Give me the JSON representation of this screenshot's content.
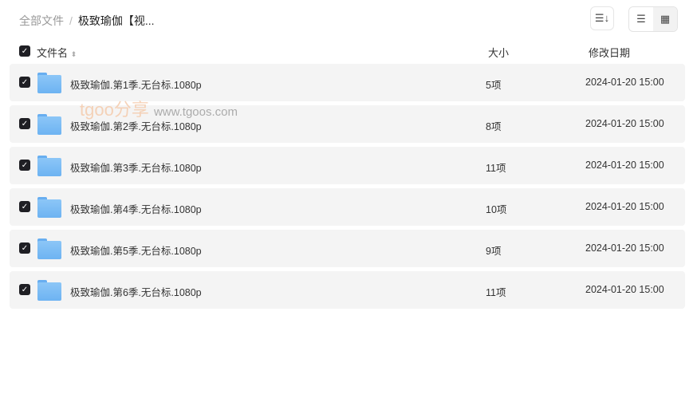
{
  "breadcrumb": {
    "root": "全部文件",
    "separator": "/",
    "current": "极致瑜伽【视..."
  },
  "toolbar": {
    "sort_icon": "sort-icon",
    "list_icon": "list-view-icon",
    "grid_icon": "grid-view-icon"
  },
  "header": {
    "name": "文件名",
    "size": "大小",
    "date": "修改日期"
  },
  "files": [
    {
      "name": "极致瑜伽.第1季.无台标.1080p",
      "size": "5项",
      "date": "2024-01-20 15:00"
    },
    {
      "name": "极致瑜伽.第2季.无台标.1080p",
      "size": "8项",
      "date": "2024-01-20 15:00"
    },
    {
      "name": "极致瑜伽.第3季.无台标.1080p",
      "size": "11项",
      "date": "2024-01-20 15:00"
    },
    {
      "name": "极致瑜伽.第4季.无台标.1080p",
      "size": "10项",
      "date": "2024-01-20 15:00"
    },
    {
      "name": "极致瑜伽.第5季.无台标.1080p",
      "size": "9项",
      "date": "2024-01-20 15:00"
    },
    {
      "name": "极致瑜伽.第6季.无台标.1080p",
      "size": "11项",
      "date": "2024-01-20 15:00"
    }
  ],
  "watermark": {
    "brand": "tgoo分享",
    "url": "www.tgoos.com"
  }
}
